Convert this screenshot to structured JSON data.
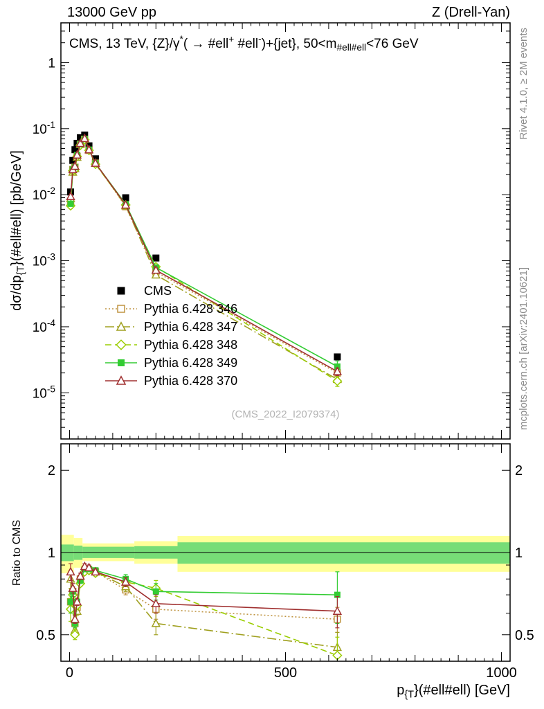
{
  "header": {
    "left": "13000 GeV pp",
    "right": "Z (Drell-Yan)"
  },
  "side_notes": {
    "top_right": "Rivet 4.1.0, ≥ 2M events",
    "bottom_right": "mcplots.cern.ch [arXiv:2401.10621]"
  },
  "watermark": "(CMS_2022_I2079374)",
  "chart_data": {
    "type": "line",
    "title": "CMS, 13 TeV, {Z}/γ^{*}( →  #ell^{+} #ell^{-})+{jet}, 50<m_{#ell#ell}<76 GeV",
    "xlabel": "p_{{T}}(#ell#ell) [GeV]",
    "ylabel_main": "dσ/dp_{{T}}(#ell#ell) [pb/GeV]",
    "ylabel_ratio": "Ratio to CMS",
    "x_range": [
      -20,
      1020
    ],
    "y_range_main": [
      2e-06,
      4
    ],
    "y_range_ratio": [
      0.4,
      2.5
    ],
    "x_ticks": [
      0,
      500,
      1000
    ],
    "y_ticks_main_exponents": [
      0,
      -1,
      -2,
      -3,
      -4,
      -5
    ],
    "y_ticks_ratio": [
      2,
      1,
      0.5
    ],
    "x_values": [
      2.5,
      7.5,
      12.5,
      17.5,
      25,
      35,
      45,
      60,
      130,
      200,
      620
    ],
    "ratio_bands": [
      {
        "name": "uncertainty-band-outer",
        "color": "#ffff99",
        "segments": [
          [
            -20,
            10,
            0.84,
            1.16
          ],
          [
            10,
            30,
            0.88,
            1.13
          ],
          [
            30,
            150,
            0.93,
            1.08
          ],
          [
            150,
            250,
            0.91,
            1.1
          ],
          [
            250,
            1020,
            0.85,
            1.15
          ]
        ]
      },
      {
        "name": "uncertainty-band-inner",
        "color": "#77dd77",
        "segments": [
          [
            -20,
            10,
            0.93,
            1.07
          ],
          [
            10,
            30,
            0.94,
            1.06
          ],
          [
            30,
            150,
            0.955,
            1.05
          ],
          [
            150,
            250,
            0.95,
            1.055
          ],
          [
            250,
            1020,
            0.91,
            1.09
          ]
        ]
      }
    ],
    "series": [
      {
        "label": "CMS",
        "color": "#000000",
        "line": "none",
        "marker": "square_filled",
        "is_reference": true,
        "y": [
          0.011,
          0.033,
          0.048,
          0.06,
          0.073,
          0.08,
          0.055,
          0.035,
          0.009,
          0.0011,
          3.5e-05
        ],
        "y_rel_err": [
          0.05,
          0.03,
          0.03,
          0.03,
          0.03,
          0.03,
          0.03,
          0.03,
          0.04,
          0.05,
          0.1
        ]
      },
      {
        "label": "Pythia 6.428 346",
        "color": "#bf9440",
        "line": "dotted",
        "marker": "square_open",
        "y": [
          0.0073,
          0.024,
          0.026,
          0.038,
          0.058,
          0.069,
          0.047,
          0.03,
          0.0066,
          0.00068,
          2e-05
        ],
        "ratio": [
          0.66,
          0.72,
          0.55,
          0.63,
          0.8,
          0.86,
          0.86,
          0.85,
          0.73,
          0.62,
          0.57
        ],
        "ratio_err": [
          0.06,
          0.03,
          0.02,
          0.02,
          0.02,
          0.02,
          0.02,
          0.02,
          0.03,
          0.05,
          0.06
        ]
      },
      {
        "label": "Pythia 6.428 347",
        "color": "#a0a020",
        "line": "dashdot",
        "marker": "triangle_open",
        "y": [
          0.0088,
          0.022,
          0.025,
          0.037,
          0.058,
          0.07,
          0.048,
          0.03,
          0.0068,
          0.00061,
          1.6e-05
        ],
        "ratio": [
          0.8,
          0.66,
          0.52,
          0.61,
          0.79,
          0.87,
          0.87,
          0.85,
          0.75,
          0.55,
          0.45
        ],
        "ratio_err": [
          0.06,
          0.03,
          0.02,
          0.02,
          0.02,
          0.02,
          0.02,
          0.02,
          0.03,
          0.05,
          0.06
        ]
      },
      {
        "label": "Pythia 6.428 348",
        "color": "#9acd00",
        "line": "dashed",
        "marker": "diamond_open",
        "y": [
          0.0068,
          0.023,
          0.024,
          0.038,
          0.056,
          0.068,
          0.047,
          0.029,
          0.007,
          0.00081,
          1.5e-05
        ],
        "ratio": [
          0.62,
          0.7,
          0.5,
          0.64,
          0.77,
          0.85,
          0.86,
          0.84,
          0.78,
          0.74,
          0.42
        ],
        "ratio_err": [
          0.06,
          0.03,
          0.02,
          0.02,
          0.02,
          0.02,
          0.02,
          0.02,
          0.03,
          0.05,
          0.07
        ]
      },
      {
        "label": "Pythia 6.428 349",
        "color": "#33cc33",
        "line": "solid",
        "marker": "square_filled",
        "y": [
          0.0073,
          0.024,
          0.026,
          0.04,
          0.058,
          0.07,
          0.048,
          0.03,
          0.0072,
          0.00079,
          2.5e-05
        ],
        "ratio": [
          0.66,
          0.72,
          0.55,
          0.66,
          0.79,
          0.87,
          0.87,
          0.86,
          0.8,
          0.72,
          0.7
        ],
        "ratio_err": [
          0.06,
          0.03,
          0.02,
          0.02,
          0.02,
          0.02,
          0.02,
          0.02,
          0.03,
          0.05,
          0.15
        ]
      },
      {
        "label": "Pythia 6.428 370",
        "color": "#a03030",
        "line": "solid",
        "marker": "triangle_open",
        "y": [
          0.0094,
          0.024,
          0.027,
          0.04,
          0.06,
          0.071,
          0.048,
          0.03,
          0.007,
          0.00072,
          2.1e-05
        ],
        "ratio": [
          0.85,
          0.74,
          0.57,
          0.66,
          0.82,
          0.89,
          0.88,
          0.85,
          0.78,
          0.65,
          0.61
        ],
        "ratio_err": [
          0.06,
          0.03,
          0.02,
          0.02,
          0.02,
          0.02,
          0.02,
          0.02,
          0.03,
          0.05,
          0.08
        ]
      }
    ]
  }
}
